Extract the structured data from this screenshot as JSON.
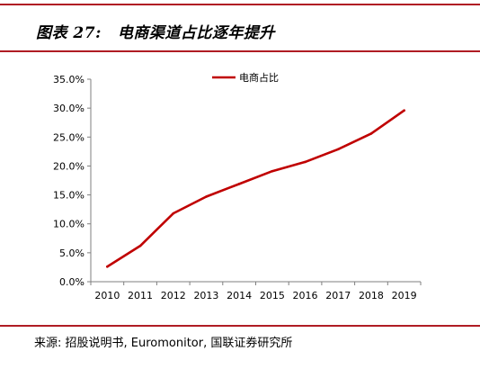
{
  "figure": {
    "label": "图表 27:",
    "title": "电商渠道占比逐年提升",
    "source": "来源: 招股说明书, Euromonitor, 国联证券研究所"
  },
  "colors": {
    "accent": "#b01c24",
    "line": "#c00000"
  },
  "chart_data": {
    "type": "line",
    "title": "电商渠道占比逐年提升",
    "xlabel": "",
    "ylabel": "",
    "categories": [
      "2010",
      "2011",
      "2012",
      "2013",
      "2014",
      "2015",
      "2016",
      "2017",
      "2018",
      "2019"
    ],
    "series": [
      {
        "name": "电商占比",
        "values": [
          2.6,
          6.2,
          11.8,
          14.7,
          16.9,
          19.1,
          20.7,
          22.9,
          25.6,
          29.6
        ]
      }
    ],
    "y_ticks": [
      "0.0%",
      "5.0%",
      "10.0%",
      "15.0%",
      "20.0%",
      "25.0%",
      "30.0%",
      "35.0%"
    ],
    "ylim": [
      0,
      35
    ],
    "y_unit": "%",
    "grid": false,
    "legend_position": "top"
  }
}
